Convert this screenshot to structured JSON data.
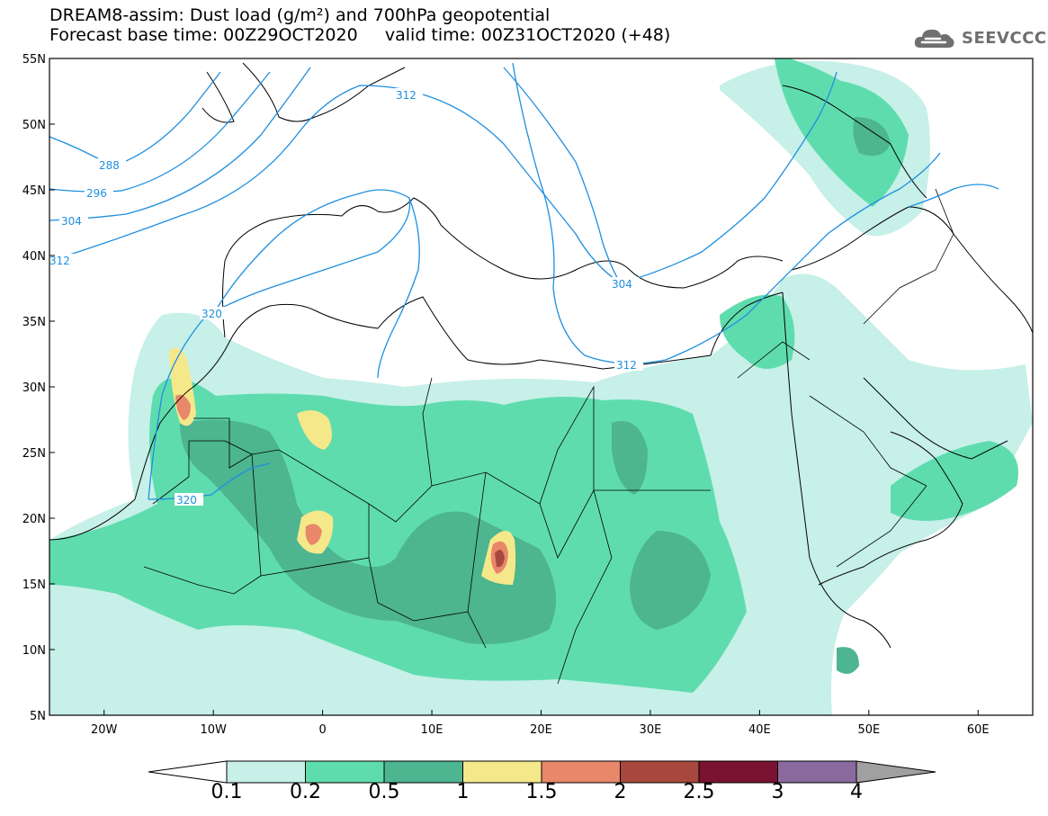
{
  "header": {
    "line1": "DREAM8-assim: Dust load (g/m²) and 700hPa geopotential",
    "line2": "Forecast base time: 00Z29OCT2020     valid time: 00Z31OCT2020 (+48)"
  },
  "logo": {
    "text": "SEEVCCC",
    "icon": "cloud-logo-icon"
  },
  "axes": {
    "lat_labels": [
      "55N",
      "50N",
      "45N",
      "40N",
      "35N",
      "30N",
      "25N",
      "20N",
      "15N",
      "10N",
      "5N"
    ],
    "lon_labels": [
      "20W",
      "10W",
      "0",
      "10E",
      "20E",
      "30E",
      "40E",
      "50E",
      "60E"
    ],
    "lon_range": [
      -25,
      65
    ],
    "lat_range": [
      5,
      55
    ]
  },
  "contours": {
    "labels": [
      "288",
      "296",
      "304",
      "312",
      "320",
      "304",
      "312",
      "312",
      "320"
    ]
  },
  "colorbar": {
    "levels": [
      "0.1",
      "0.2",
      "0.5",
      "1",
      "1.5",
      "2",
      "2.5",
      "3",
      "4"
    ],
    "colors": [
      "#c6f0e8",
      "#5fdcae",
      "#4db590",
      "#f5e88a",
      "#e8876a",
      "#a8473d",
      "#7a1232",
      "#8a6a9e",
      "#a0a0a0"
    ],
    "under_color": "#ffffff",
    "over_color": "#a0a0a0"
  }
}
